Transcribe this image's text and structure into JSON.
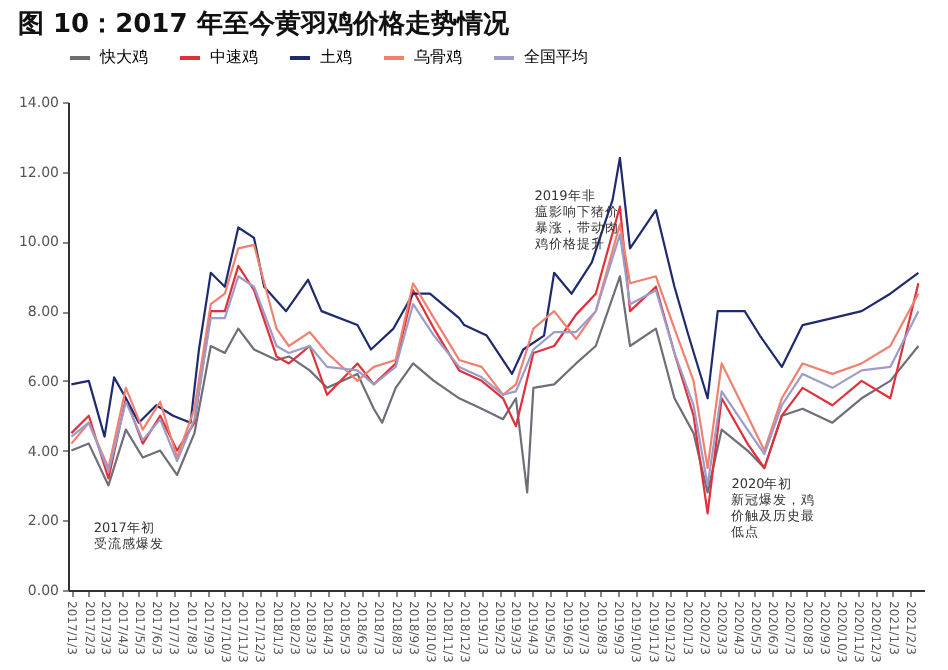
{
  "chart_data": {
    "type": "line",
    "title": "图 10：2017 年至今黄羽鸡价格走势情况",
    "ylim": [
      0,
      14
    ],
    "yticks": [
      {
        "value": 0,
        "label": "0.00"
      },
      {
        "value": 2,
        "label": "2.00"
      },
      {
        "value": 4,
        "label": "4.00"
      },
      {
        "value": 6,
        "label": "6.00"
      },
      {
        "value": 8,
        "label": "8.00"
      },
      {
        "value": 10,
        "label": "10.00"
      },
      {
        "value": 12,
        "label": "12.00"
      },
      {
        "value": 14,
        "label": "14.00"
      }
    ],
    "xlim": [
      "2016-12-28",
      "2021-02-28"
    ],
    "xticks": [
      {
        "value": "2017-01-03",
        "label": "2017/1/3"
      },
      {
        "value": "2017-02-03",
        "label": "2017/2/3"
      },
      {
        "value": "2017-03-03",
        "label": "2017/3/3"
      },
      {
        "value": "2017-04-03",
        "label": "2017/4/3"
      },
      {
        "value": "2017-05-03",
        "label": "2017/5/3"
      },
      {
        "value": "2017-06-03",
        "label": "2017/6/3"
      },
      {
        "value": "2017-07-03",
        "label": "2017/7/3"
      },
      {
        "value": "2017-08-03",
        "label": "2017/8/3"
      },
      {
        "value": "2017-09-03",
        "label": "2017/9/3"
      },
      {
        "value": "2017-10-03",
        "label": "2017/10/3"
      },
      {
        "value": "2017-11-03",
        "label": "2017/11/3"
      },
      {
        "value": "2017-12-03",
        "label": "2017/12/3"
      },
      {
        "value": "2018-01-03",
        "label": "2018/1/3"
      },
      {
        "value": "2018-02-03",
        "label": "2018/2/3"
      },
      {
        "value": "2018-03-03",
        "label": "2018/3/3"
      },
      {
        "value": "2018-04-03",
        "label": "2018/4/3"
      },
      {
        "value": "2018-05-03",
        "label": "2018/5/3"
      },
      {
        "value": "2018-06-03",
        "label": "2018/6/3"
      },
      {
        "value": "2018-07-03",
        "label": "2018/7/3"
      },
      {
        "value": "2018-08-03",
        "label": "2018/8/3"
      },
      {
        "value": "2018-09-03",
        "label": "2018/9/3"
      },
      {
        "value": "2018-10-03",
        "label": "2018/10/3"
      },
      {
        "value": "2018-11-03",
        "label": "2018/11/3"
      },
      {
        "value": "2018-12-03",
        "label": "2018/12/3"
      },
      {
        "value": "2019-01-03",
        "label": "2019/1/3"
      },
      {
        "value": "2019-02-03",
        "label": "2019/2/3"
      },
      {
        "value": "2019-03-03",
        "label": "2019/3/3"
      },
      {
        "value": "2019-04-03",
        "label": "2019/4/3"
      },
      {
        "value": "2019-05-03",
        "label": "2019/5/3"
      },
      {
        "value": "2019-06-03",
        "label": "2019/6/3"
      },
      {
        "value": "2019-07-03",
        "label": "2019/7/3"
      },
      {
        "value": "2019-08-03",
        "label": "2019/8/3"
      },
      {
        "value": "2019-09-03",
        "label": "2019/9/3"
      },
      {
        "value": "2019-10-03",
        "label": "2019/10/3"
      },
      {
        "value": "2019-11-03",
        "label": "2019/11/3"
      },
      {
        "value": "2019-12-03",
        "label": "2019/12/3"
      },
      {
        "value": "2020-01-03",
        "label": "2020/1/3"
      },
      {
        "value": "2020-02-03",
        "label": "2020/2/3"
      },
      {
        "value": "2020-03-03",
        "label": "2020/3/3"
      },
      {
        "value": "2020-04-03",
        "label": "2020/4/3"
      },
      {
        "value": "2020-05-03",
        "label": "2020/5/3"
      },
      {
        "value": "2020-06-03",
        "label": "2020/6/3"
      },
      {
        "value": "2020-07-03",
        "label": "2020/7/3"
      },
      {
        "value": "2020-08-03",
        "label": "2020/8/3"
      },
      {
        "value": "2020-09-03",
        "label": "2020/9/3"
      },
      {
        "value": "2020-10-03",
        "label": "2020/10/3"
      },
      {
        "value": "2020-11-03",
        "label": "2020/11/3"
      },
      {
        "value": "2020-12-03",
        "label": "2020/12/3"
      },
      {
        "value": "2021-01-03",
        "label": "2021/1/3"
      },
      {
        "value": "2021-02-03",
        "label": "2021/2/3"
      }
    ],
    "legend": "top",
    "grid": false,
    "marker": "none",
    "line_style": "solid",
    "series": [
      {
        "name": "快大鸡",
        "color": "#6e6e78",
        "x": [
          "2017-01-03",
          "2017-02-03",
          "2017-03-10",
          "2017-04-10",
          "2017-05-10",
          "2017-06-10",
          "2017-07-10",
          "2017-08-10",
          "2017-09-08",
          "2017-10-03",
          "2017-10-27",
          "2017-11-24",
          "2018-01-03",
          "2018-01-25",
          "2018-03-03",
          "2018-04-03",
          "2018-05-27",
          "2018-06-25",
          "2018-07-10",
          "2018-08-03",
          "2018-09-03",
          "2018-10-10",
          "2018-11-24",
          "2019-01-03",
          "2019-02-10",
          "2019-03-05",
          "2019-03-25",
          "2019-04-05",
          "2019-05-12",
          "2019-06-20",
          "2019-07-25",
          "2019-09-06",
          "2019-09-24",
          "2019-11-09",
          "2019-12-12",
          "2020-01-15",
          "2020-02-09",
          "2020-03-05",
          "2020-04-20",
          "2020-05-20",
          "2020-06-20",
          "2020-07-27",
          "2020-09-18",
          "2020-11-09",
          "2020-12-30",
          "2021-02-18"
        ],
        "values": [
          4.0,
          4.2,
          3.0,
          4.6,
          3.8,
          4.0,
          3.3,
          4.5,
          7.0,
          6.8,
          7.5,
          6.9,
          6.6,
          6.7,
          6.3,
          5.8,
          6.2,
          5.2,
          4.8,
          5.8,
          6.5,
          6.0,
          5.5,
          5.2,
          4.9,
          5.5,
          2.8,
          5.8,
          5.9,
          6.5,
          7.0,
          9.0,
          7.0,
          7.5,
          5.5,
          4.5,
          2.8,
          4.6,
          4.0,
          3.5,
          5.0,
          5.2,
          4.8,
          5.5,
          6.0,
          7.0
        ]
      },
      {
        "name": "中速鸡",
        "color": "#e0303a",
        "x": [
          "2017-01-03",
          "2017-02-03",
          "2017-03-10",
          "2017-04-10",
          "2017-05-10",
          "2017-06-10",
          "2017-07-10",
          "2017-08-10",
          "2017-09-08",
          "2017-10-03",
          "2017-10-27",
          "2017-11-24",
          "2018-01-03",
          "2018-01-25",
          "2018-03-03",
          "2018-04-03",
          "2018-05-27",
          "2018-06-25",
          "2018-08-03",
          "2018-09-03",
          "2018-10-10",
          "2018-11-24",
          "2019-01-03",
          "2019-02-10",
          "2019-03-05",
          "2019-04-05",
          "2019-05-12",
          "2019-06-20",
          "2019-07-25",
          "2019-09-06",
          "2019-09-24",
          "2019-11-09",
          "2019-12-12",
          "2020-01-15",
          "2020-02-09",
          "2020-03-05",
          "2020-04-20",
          "2020-05-20",
          "2020-06-20",
          "2020-07-27",
          "2020-09-18",
          "2020-11-09",
          "2020-12-30",
          "2021-02-18"
        ],
        "values": [
          4.5,
          5.0,
          3.2,
          5.5,
          4.2,
          5.0,
          4.0,
          4.8,
          8.0,
          8.0,
          9.3,
          8.6,
          6.7,
          6.5,
          7.0,
          5.6,
          6.5,
          5.9,
          6.5,
          8.6,
          7.5,
          6.3,
          6.0,
          5.5,
          4.7,
          6.8,
          7.0,
          7.9,
          8.5,
          11.0,
          8.0,
          8.7,
          6.8,
          5.0,
          2.2,
          5.5,
          4.2,
          3.5,
          5.0,
          5.8,
          5.3,
          6.0,
          5.5,
          8.8
        ]
      },
      {
        "name": "土鸡",
        "color": "#1f2a6e",
        "x": [
          "2017-01-03",
          "2017-02-03",
          "2017-03-03",
          "2017-03-20",
          "2017-04-10",
          "2017-05-03",
          "2017-06-03",
          "2017-07-03",
          "2017-08-03",
          "2017-08-18",
          "2017-09-08",
          "2017-10-03",
          "2017-10-27",
          "2017-11-24",
          "2017-12-12",
          "2018-01-20",
          "2018-02-28",
          "2018-03-24",
          "2018-05-27",
          "2018-06-20",
          "2018-07-30",
          "2018-09-03",
          "2018-10-03",
          "2018-11-24",
          "2018-12-03",
          "2019-01-12",
          "2019-02-26",
          "2019-03-18",
          "2019-04-24",
          "2019-05-12",
          "2019-06-12",
          "2019-07-18",
          "2019-08-24",
          "2019-09-06",
          "2019-09-24",
          "2019-11-09",
          "2019-12-12",
          "2020-01-06",
          "2020-02-09",
          "2020-02-27",
          "2020-04-15",
          "2020-05-12",
          "2020-06-20",
          "2020-07-27",
          "2020-09-18",
          "2020-11-09",
          "2020-12-30",
          "2021-02-18"
        ],
        "values": [
          5.9,
          6.0,
          4.4,
          6.1,
          5.5,
          4.8,
          5.3,
          5.0,
          4.8,
          6.9,
          9.1,
          8.7,
          10.4,
          10.1,
          8.7,
          8.0,
          8.9,
          8.0,
          7.6,
          6.9,
          7.5,
          8.5,
          8.5,
          7.8,
          7.6,
          7.3,
          6.2,
          6.9,
          7.3,
          9.1,
          8.5,
          9.4,
          11.2,
          12.4,
          9.8,
          10.9,
          8.7,
          7.3,
          5.5,
          8.0,
          8.0,
          7.3,
          6.4,
          7.6,
          7.8,
          8.0,
          8.5,
          9.1
        ]
      },
      {
        "name": "乌骨鸡",
        "color": "#f08070",
        "x": [
          "2017-01-03",
          "2017-02-03",
          "2017-03-10",
          "2017-04-10",
          "2017-05-10",
          "2017-06-10",
          "2017-07-10",
          "2017-08-10",
          "2017-09-08",
          "2017-10-03",
          "2017-10-27",
          "2017-11-24",
          "2018-01-03",
          "2018-01-25",
          "2018-03-03",
          "2018-04-03",
          "2018-05-27",
          "2018-06-25",
          "2018-08-03",
          "2018-09-03",
          "2018-10-10",
          "2018-11-24",
          "2019-01-03",
          "2019-02-10",
          "2019-03-05",
          "2019-04-05",
          "2019-05-12",
          "2019-06-20",
          "2019-07-25",
          "2019-09-06",
          "2019-09-24",
          "2019-11-09",
          "2019-12-12",
          "2020-01-15",
          "2020-02-09",
          "2020-03-05",
          "2020-04-20",
          "2020-05-20",
          "2020-06-20",
          "2020-07-27",
          "2020-09-18",
          "2020-11-09",
          "2020-12-30",
          "2021-02-18"
        ],
        "values": [
          4.2,
          4.8,
          3.5,
          5.8,
          4.6,
          5.4,
          3.8,
          5.2,
          8.2,
          8.5,
          9.8,
          9.9,
          7.5,
          7.0,
          7.4,
          6.8,
          6.0,
          6.4,
          6.6,
          8.8,
          7.8,
          6.6,
          6.4,
          5.6,
          5.9,
          7.5,
          8.0,
          7.2,
          8.0,
          10.5,
          8.8,
          9.0,
          7.5,
          6.0,
          3.5,
          6.5,
          5.0,
          4.0,
          5.5,
          6.5,
          6.2,
          6.5,
          7.0,
          8.5
        ]
      },
      {
        "name": "全国平均",
        "color": "#9c9cc8",
        "x": [
          "2017-01-03",
          "2017-02-03",
          "2017-03-10",
          "2017-04-10",
          "2017-05-10",
          "2017-06-10",
          "2017-07-10",
          "2017-08-10",
          "2017-09-08",
          "2017-10-03",
          "2017-10-27",
          "2017-11-24",
          "2018-01-03",
          "2018-01-25",
          "2018-03-03",
          "2018-04-03",
          "2018-05-27",
          "2018-06-25",
          "2018-08-03",
          "2018-09-03",
          "2018-10-10",
          "2018-11-24",
          "2019-01-03",
          "2019-02-10",
          "2019-03-05",
          "2019-04-05",
          "2019-05-12",
          "2019-06-20",
          "2019-07-25",
          "2019-09-06",
          "2019-09-24",
          "2019-11-09",
          "2019-12-12",
          "2020-01-15",
          "2020-02-09",
          "2020-03-05",
          "2020-04-20",
          "2020-05-20",
          "2020-06-20",
          "2020-07-27",
          "2020-09-18",
          "2020-11-09",
          "2020-12-30",
          "2021-02-18"
        ],
        "values": [
          4.4,
          4.8,
          3.4,
          5.4,
          4.3,
          4.9,
          3.7,
          4.9,
          7.8,
          7.8,
          9.0,
          8.7,
          7.0,
          6.8,
          7.0,
          6.4,
          6.3,
          5.9,
          6.4,
          8.2,
          7.3,
          6.4,
          6.1,
          5.6,
          5.7,
          6.9,
          7.4,
          7.4,
          8.0,
          10.2,
          8.2,
          8.6,
          6.8,
          5.3,
          3.0,
          5.7,
          4.6,
          3.9,
          5.3,
          6.2,
          5.8,
          6.3,
          6.4,
          8.0
        ]
      }
    ],
    "annotations": [
      "2017年初受流感爆发",
      "2019年非瘟影响下猪价暴涨，带动肉鸡价格提升",
      "2020年初新冠爆发，鸡价触及历史最低点"
    ]
  }
}
